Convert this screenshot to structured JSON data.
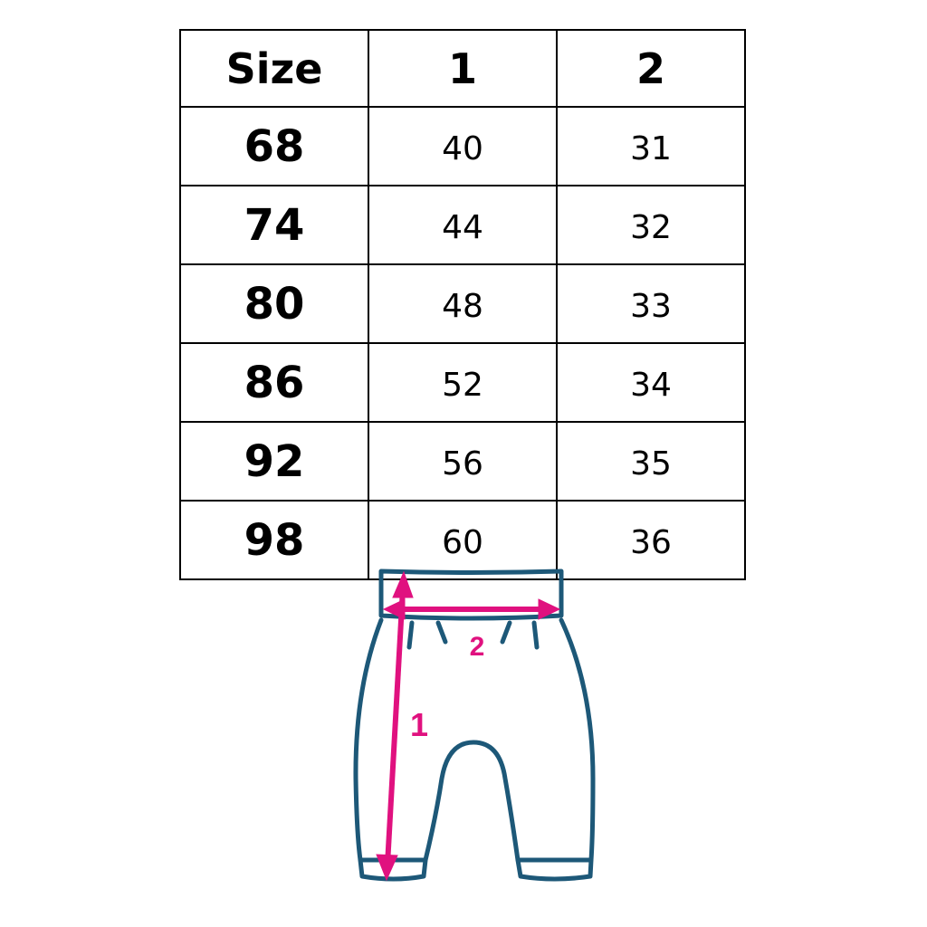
{
  "table": {
    "headers": [
      "Size",
      "1",
      "2"
    ],
    "rows": [
      [
        "68",
        "40",
        "31"
      ],
      [
        "74",
        "44",
        "32"
      ],
      [
        "80",
        "48",
        "33"
      ],
      [
        "86",
        "52",
        "34"
      ],
      [
        "92",
        "56",
        "35"
      ],
      [
        "98",
        "60",
        "36"
      ]
    ]
  },
  "diagram": {
    "length_label": "1",
    "width_label": "2",
    "colors": {
      "outline": "#1d5878",
      "measure": "#e0117f"
    }
  }
}
